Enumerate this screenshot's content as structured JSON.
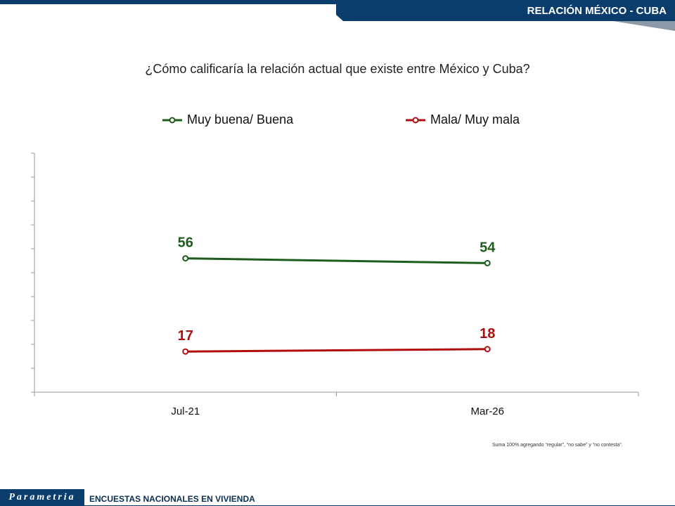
{
  "header": {
    "title": "RELACIÓN MÉXICO - CUBA"
  },
  "question": "¿Cómo calificaría la relación actual que existe entre México y Cuba?",
  "footnote": "Suma 100% agregando “regular”, “no sabe” y “no contesta”.",
  "footer": {
    "logo": "Parametria",
    "text": "ENCUESTAS NACIONALES EN VIVIENDA"
  },
  "colors": {
    "brand": "#0a3d6b",
    "positive": "#1e5c1e",
    "negative": "#b00e0e"
  },
  "chart_data": {
    "type": "line",
    "categories": [
      "Jul-21",
      "Mar-26"
    ],
    "series": [
      {
        "name": "Muy buena/ Buena",
        "values": [
          56,
          54
        ],
        "color": "#1e5c1e"
      },
      {
        "name": "Mala/ Muy mala",
        "values": [
          17,
          18
        ],
        "color": "#b00e0e"
      }
    ],
    "ylim": [
      0,
      100
    ],
    "legend": "top",
    "grid": false
  }
}
